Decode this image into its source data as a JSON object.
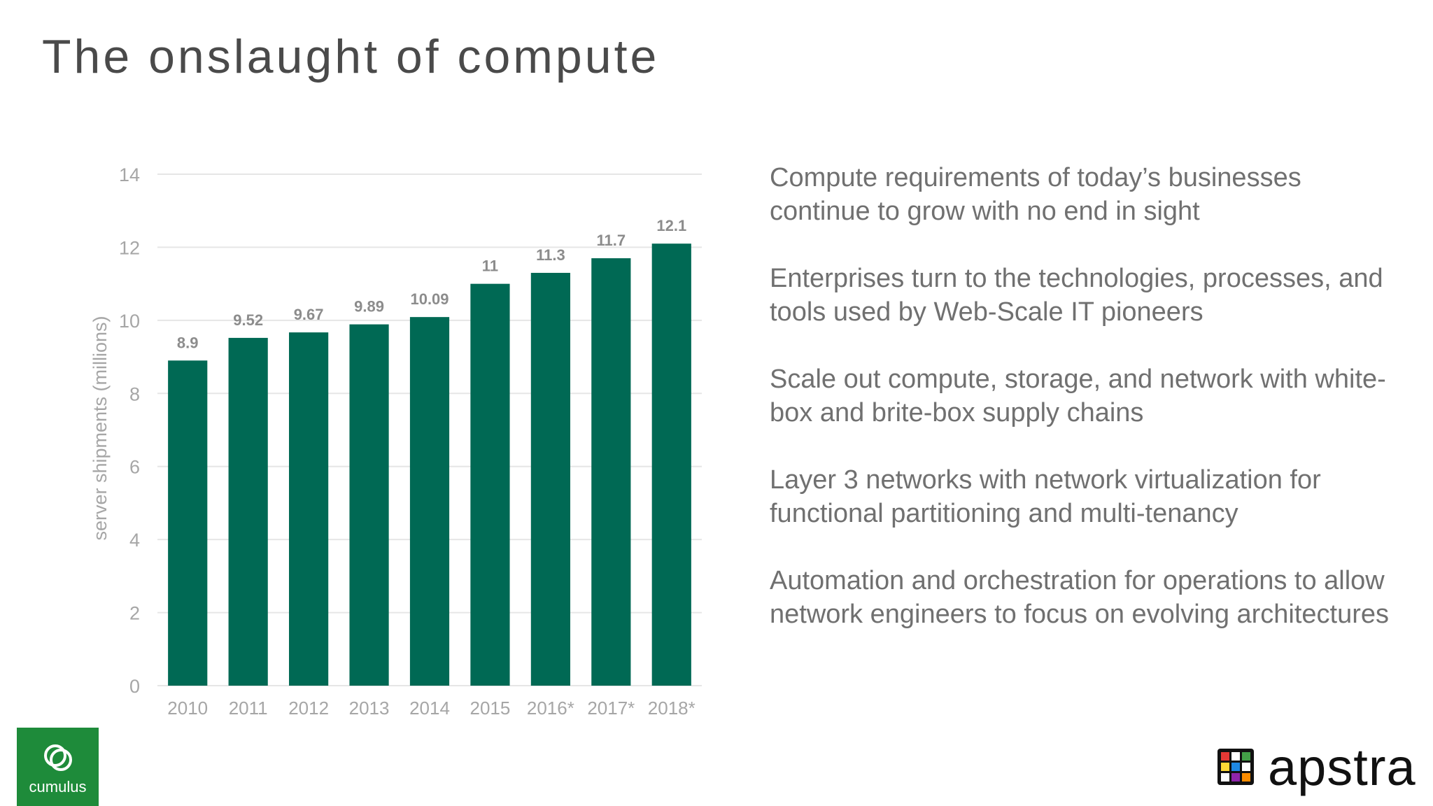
{
  "slide": {
    "title": "The onslaught of compute",
    "bullets": [
      "Compute requirements of today’s businesses continue to grow with no end in sight",
      "Enterprises turn to the technologies, processes, and tools used by Web-Scale IT pioneers",
      "Scale out compute, storage, and network with white-box and brite-box supply chains",
      "Layer 3 networks with network virtualization for functional partitioning and multi-tenancy",
      "Automation and orchestration for operations to allow network engineers to focus on evolving architectures"
    ]
  },
  "logos": {
    "cumulus": "cumulus",
    "apstra": "apstra"
  },
  "colors": {
    "bar": "#006954",
    "grid": "#e6e6e6",
    "axis_text": "#a6a6a6",
    "value_label": "#8c8c8c",
    "cumulus_bg": "#1e8b3a"
  },
  "chart_data": {
    "type": "bar",
    "categories": [
      "2010",
      "2011",
      "2012",
      "2013",
      "2014",
      "2015",
      "2016*",
      "2017*",
      "2018*"
    ],
    "values": [
      8.9,
      9.52,
      9.67,
      9.89,
      10.09,
      11,
      11.3,
      11.7,
      12.1
    ],
    "value_labels": [
      "8.9",
      "9.52",
      "9.67",
      "9.89",
      "10.09",
      "11",
      "11.3",
      "11.7",
      "12.1"
    ],
    "ylabel": "server shipments (millions)",
    "ylim": [
      0,
      14
    ],
    "yticks": [
      0,
      2,
      4,
      6,
      8,
      10,
      12,
      14
    ],
    "grid": true
  }
}
